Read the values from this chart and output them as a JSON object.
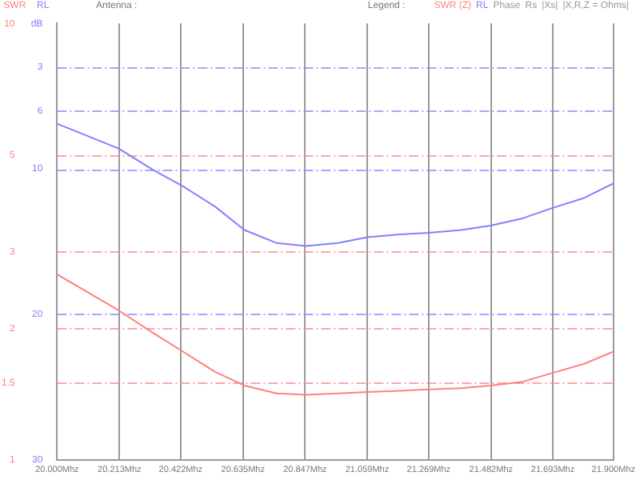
{
  "chart_data": {
    "type": "line",
    "title": "Antenna :",
    "ylabel": "RL",
    "y2label": "SWR",
    "legend_title": "Legend :",
    "x": [
      20.0,
      20.21,
      20.33,
      20.43,
      20.54,
      20.64,
      20.75,
      20.85,
      20.96,
      21.06,
      21.17,
      21.27,
      21.38,
      21.48,
      21.59,
      21.69,
      21.8,
      21.9
    ],
    "series": [
      {
        "name": "SWR (Z)",
        "color": "#ff8080",
        "axis": "y2",
        "values": [
          2.66,
          2.2,
          1.95,
          1.77,
          1.59,
          1.48,
          1.42,
          1.41,
          1.42,
          1.43,
          1.44,
          1.45,
          1.46,
          1.48,
          1.51,
          1.58,
          1.66,
          1.77
        ]
      },
      {
        "name": "RL",
        "color": "#8080ff",
        "values": [
          6.9,
          8.6,
          10.1,
          11.2,
          12.6,
          14.2,
          15.1,
          15.3,
          15.1,
          14.7,
          14.5,
          14.4,
          14.2,
          13.9,
          13.4,
          12.7,
          12.0,
          11.0
        ]
      }
    ],
    "annotations": [
      "Phase",
      "Rs",
      "|Xs|",
      "|X,R,Z = Ohms|"
    ],
    "xlim": [
      20.0,
      21.9
    ],
    "xticks": [
      {
        "value": 20.0,
        "label": "20.000Mhz"
      },
      {
        "value": 20.213,
        "label": "20.213Mhz"
      },
      {
        "value": 20.422,
        "label": "20.422Mhz"
      },
      {
        "value": 20.635,
        "label": "20.635Mhz"
      },
      {
        "value": 20.847,
        "label": "20.847Mhz"
      },
      {
        "value": 21.059,
        "label": "21.059Mhz"
      },
      {
        "value": 21.269,
        "label": "21.269Mhz"
      },
      {
        "value": 21.482,
        "label": "21.482Mhz"
      },
      {
        "value": 21.693,
        "label": "21.693Mhz"
      },
      {
        "value": 21.9,
        "label": "21.900Mhz"
      }
    ],
    "ylim": [
      30,
      0
    ],
    "yticks": [
      {
        "value": 0,
        "label": "dB"
      },
      3,
      6,
      10,
      20,
      30
    ],
    "y2lim": [
      1,
      10
    ],
    "y2ticks": [
      1,
      1.5,
      2,
      3,
      5,
      10
    ],
    "log": "y2",
    "grid": true,
    "legend": "top right",
    "marker": "none",
    "line_style": "solid"
  }
}
